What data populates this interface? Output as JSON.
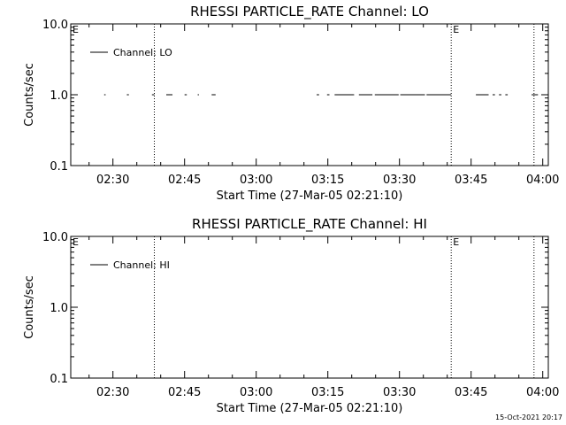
{
  "chart_data": [
    {
      "type": "line",
      "title": "RHESSI PARTICLE_RATE Channel: LO",
      "xlabel": "Start Time (27-Mar-05 02:21:10)",
      "ylabel": "Counts/sec",
      "yscale": "log",
      "ylim": [
        0.1,
        10.0
      ],
      "yticks": [
        "0.1",
        "1.0",
        "10.0"
      ],
      "xlim": [
        "02:21:10",
        "04:01:10"
      ],
      "xticks": [
        "02:30",
        "02:45",
        "03:00",
        "03:15",
        "03:30",
        "03:45",
        "04:00"
      ],
      "legend": {
        "position": "top-left",
        "entries": [
          "Channel: LO"
        ]
      },
      "series": [
        {
          "name": "Channel: LO",
          "value": 1.0,
          "segments": [
            [
              "02:21:52",
              "02:22:16"
            ],
            [
              "02:28:10",
              "02:28:28"
            ],
            [
              "02:32:55",
              "02:33:20"
            ],
            [
              "02:38:10",
              "02:38:40"
            ],
            [
              "02:41:10",
              "02:42:28"
            ],
            [
              "02:45:00",
              "02:45:28"
            ],
            [
              "02:47:45",
              "02:48:00"
            ],
            [
              "02:50:40",
              "02:51:30"
            ],
            [
              "03:12:40",
              "03:13:10"
            ],
            [
              "03:14:50",
              "03:15:20"
            ],
            [
              "03:16:25",
              "03:20:30"
            ],
            [
              "03:21:30",
              "03:24:20"
            ],
            [
              "03:24:50",
              "03:29:50"
            ],
            [
              "03:30:10",
              "03:35:20"
            ],
            [
              "03:35:40",
              "03:40:50"
            ],
            [
              "03:46:00",
              "03:48:40"
            ],
            [
              "03:49:30",
              "03:50:00"
            ],
            [
              "03:50:50",
              "03:51:20"
            ],
            [
              "03:52:10",
              "03:52:40"
            ],
            [
              "03:57:40",
              "03:59:00"
            ]
          ]
        }
      ],
      "markers": [
        {
          "label": "E",
          "x": "02:21:10",
          "line": false
        },
        {
          "label": "",
          "x": "02:38:40",
          "line": true
        },
        {
          "label": "E",
          "x": "03:40:50",
          "line": true
        },
        {
          "label": "",
          "x": "03:58:10",
          "line": true
        }
      ]
    },
    {
      "type": "line",
      "title": "RHESSI PARTICLE_RATE Channel: HI",
      "xlabel": "Start Time (27-Mar-05 02:21:10)",
      "ylabel": "Counts/sec",
      "yscale": "log",
      "ylim": [
        0.1,
        10.0
      ],
      "yticks": [
        "0.1",
        "1.0",
        "10.0"
      ],
      "xlim": [
        "02:21:10",
        "04:01:10"
      ],
      "xticks": [
        "02:30",
        "02:45",
        "03:00",
        "03:15",
        "03:30",
        "03:45",
        "04:00"
      ],
      "legend": {
        "position": "top-left",
        "entries": [
          "Channel: HI"
        ]
      },
      "series": [
        {
          "name": "Channel: HI",
          "value": 1.0,
          "segments": []
        }
      ],
      "markers": [
        {
          "label": "E",
          "x": "02:21:10",
          "line": false
        },
        {
          "label": "",
          "x": "02:38:40",
          "line": true
        },
        {
          "label": "E",
          "x": "03:40:50",
          "line": true
        },
        {
          "label": "",
          "x": "03:58:10",
          "line": true
        }
      ]
    }
  ],
  "footer": {
    "timestamp": "15-Oct-2021 20:17"
  }
}
